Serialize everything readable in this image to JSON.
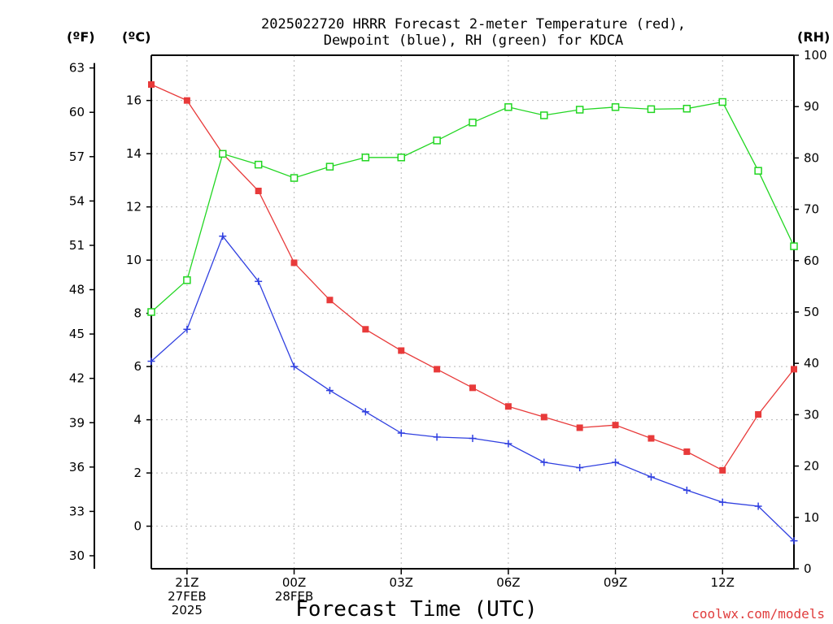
{
  "chart_data": {
    "type": "line",
    "title_line1": "2025022720 HRRR Forecast 2-meter Temperature (red),",
    "title_line2": "Dewpoint (blue), RH (green) for KDCA",
    "xlabel": "Forecast Time (UTC)",
    "credit": "coolwx.com/models",
    "unit_labels": {
      "fahrenheit": "(ºF)",
      "celsius": "(ºC)",
      "rh": "(RH)"
    },
    "x_hours": [
      20,
      21,
      22,
      23,
      24,
      25,
      26,
      27,
      28,
      29,
      30,
      31,
      32,
      33,
      34,
      35,
      36,
      37,
      38
    ],
    "xlim": [
      20,
      38
    ],
    "x_ticks": [
      {
        "hour": 21,
        "lines": [
          "21Z",
          "27FEB",
          "2025"
        ]
      },
      {
        "hour": 24,
        "lines": [
          "00Z",
          "28FEB"
        ]
      },
      {
        "hour": 27,
        "lines": [
          "03Z"
        ]
      },
      {
        "hour": 30,
        "lines": [
          "06Z"
        ]
      },
      {
        "hour": 33,
        "lines": [
          "09Z"
        ]
      },
      {
        "hour": 36,
        "lines": [
          "12Z"
        ]
      }
    ],
    "celsius_axis": {
      "ylim": [
        -1.6,
        17.7
      ],
      "ticks": [
        0,
        2,
        4,
        6,
        8,
        10,
        12,
        14,
        16
      ]
    },
    "fahrenheit_ticks": [
      30,
      33,
      36,
      39,
      42,
      45,
      48,
      51,
      54,
      57,
      60,
      63
    ],
    "rh_axis": {
      "ylim": [
        0,
        100
      ],
      "ticks": [
        0,
        10,
        20,
        30,
        40,
        50,
        60,
        70,
        80,
        90,
        100
      ]
    },
    "grid": true,
    "series": [
      {
        "name": "Temperature",
        "color": "#e83a3a",
        "marker": "filled-square",
        "axis": "celsius",
        "values": [
          16.6,
          16.0,
          14.0,
          12.6,
          9.9,
          8.5,
          7.4,
          6.6,
          5.9,
          5.2,
          4.5,
          4.1,
          3.7,
          3.8,
          3.3,
          2.8,
          2.1,
          4.2,
          5.9
        ]
      },
      {
        "name": "Dewpoint",
        "color": "#2f3fe0",
        "marker": "plus",
        "axis": "celsius",
        "values": [
          6.2,
          7.4,
          10.9,
          9.2,
          6.0,
          5.1,
          4.3,
          3.5,
          3.35,
          3.3,
          3.1,
          2.4,
          2.2,
          2.4,
          1.85,
          1.35,
          0.9,
          0.75,
          -0.55
        ]
      },
      {
        "name": "RH",
        "color": "#22d622",
        "marker": "open-square",
        "axis": "rh",
        "values": [
          50.0,
          56.2,
          80.8,
          78.7,
          76.1,
          78.3,
          80.1,
          80.1,
          83.4,
          86.9,
          89.9,
          88.3,
          89.4,
          89.9,
          89.5,
          89.6,
          90.9,
          77.5,
          62.8
        ]
      }
    ]
  }
}
